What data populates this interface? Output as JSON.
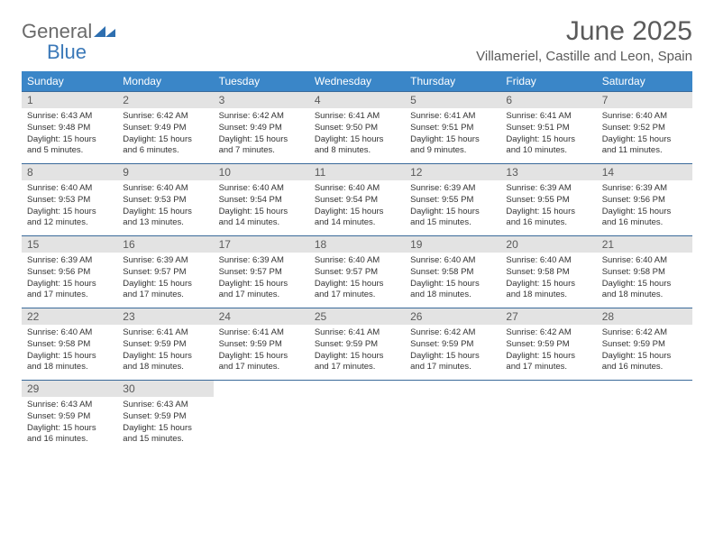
{
  "brand": {
    "general": "General",
    "blue": "Blue"
  },
  "title": "June 2025",
  "location": "Villameriel, Castille and Leon, Spain",
  "colors": {
    "header_bg": "#3a86c8",
    "header_text": "#ffffff",
    "daynum_bg": "#e3e3e3",
    "text": "#5a5a5a",
    "rule": "#3a6a9a"
  },
  "day_labels": [
    "Sunday",
    "Monday",
    "Tuesday",
    "Wednesday",
    "Thursday",
    "Friday",
    "Saturday"
  ],
  "weeks": [
    [
      {
        "n": "1",
        "sr": "6:43 AM",
        "ss": "9:48 PM",
        "dl": "15 hours and 5 minutes."
      },
      {
        "n": "2",
        "sr": "6:42 AM",
        "ss": "9:49 PM",
        "dl": "15 hours and 6 minutes."
      },
      {
        "n": "3",
        "sr": "6:42 AM",
        "ss": "9:49 PM",
        "dl": "15 hours and 7 minutes."
      },
      {
        "n": "4",
        "sr": "6:41 AM",
        "ss": "9:50 PM",
        "dl": "15 hours and 8 minutes."
      },
      {
        "n": "5",
        "sr": "6:41 AM",
        "ss": "9:51 PM",
        "dl": "15 hours and 9 minutes."
      },
      {
        "n": "6",
        "sr": "6:41 AM",
        "ss": "9:51 PM",
        "dl": "15 hours and 10 minutes."
      },
      {
        "n": "7",
        "sr": "6:40 AM",
        "ss": "9:52 PM",
        "dl": "15 hours and 11 minutes."
      }
    ],
    [
      {
        "n": "8",
        "sr": "6:40 AM",
        "ss": "9:53 PM",
        "dl": "15 hours and 12 minutes."
      },
      {
        "n": "9",
        "sr": "6:40 AM",
        "ss": "9:53 PM",
        "dl": "15 hours and 13 minutes."
      },
      {
        "n": "10",
        "sr": "6:40 AM",
        "ss": "9:54 PM",
        "dl": "15 hours and 14 minutes."
      },
      {
        "n": "11",
        "sr": "6:40 AM",
        "ss": "9:54 PM",
        "dl": "15 hours and 14 minutes."
      },
      {
        "n": "12",
        "sr": "6:39 AM",
        "ss": "9:55 PM",
        "dl": "15 hours and 15 minutes."
      },
      {
        "n": "13",
        "sr": "6:39 AM",
        "ss": "9:55 PM",
        "dl": "15 hours and 16 minutes."
      },
      {
        "n": "14",
        "sr": "6:39 AM",
        "ss": "9:56 PM",
        "dl": "15 hours and 16 minutes."
      }
    ],
    [
      {
        "n": "15",
        "sr": "6:39 AM",
        "ss": "9:56 PM",
        "dl": "15 hours and 17 minutes."
      },
      {
        "n": "16",
        "sr": "6:39 AM",
        "ss": "9:57 PM",
        "dl": "15 hours and 17 minutes."
      },
      {
        "n": "17",
        "sr": "6:39 AM",
        "ss": "9:57 PM",
        "dl": "15 hours and 17 minutes."
      },
      {
        "n": "18",
        "sr": "6:40 AM",
        "ss": "9:57 PM",
        "dl": "15 hours and 17 minutes."
      },
      {
        "n": "19",
        "sr": "6:40 AM",
        "ss": "9:58 PM",
        "dl": "15 hours and 18 minutes."
      },
      {
        "n": "20",
        "sr": "6:40 AM",
        "ss": "9:58 PM",
        "dl": "15 hours and 18 minutes."
      },
      {
        "n": "21",
        "sr": "6:40 AM",
        "ss": "9:58 PM",
        "dl": "15 hours and 18 minutes."
      }
    ],
    [
      {
        "n": "22",
        "sr": "6:40 AM",
        "ss": "9:58 PM",
        "dl": "15 hours and 18 minutes."
      },
      {
        "n": "23",
        "sr": "6:41 AM",
        "ss": "9:59 PM",
        "dl": "15 hours and 18 minutes."
      },
      {
        "n": "24",
        "sr": "6:41 AM",
        "ss": "9:59 PM",
        "dl": "15 hours and 17 minutes."
      },
      {
        "n": "25",
        "sr": "6:41 AM",
        "ss": "9:59 PM",
        "dl": "15 hours and 17 minutes."
      },
      {
        "n": "26",
        "sr": "6:42 AM",
        "ss": "9:59 PM",
        "dl": "15 hours and 17 minutes."
      },
      {
        "n": "27",
        "sr": "6:42 AM",
        "ss": "9:59 PM",
        "dl": "15 hours and 17 minutes."
      },
      {
        "n": "28",
        "sr": "6:42 AM",
        "ss": "9:59 PM",
        "dl": "15 hours and 16 minutes."
      }
    ],
    [
      {
        "n": "29",
        "sr": "6:43 AM",
        "ss": "9:59 PM",
        "dl": "15 hours and 16 minutes."
      },
      {
        "n": "30",
        "sr": "6:43 AM",
        "ss": "9:59 PM",
        "dl": "15 hours and 15 minutes."
      },
      null,
      null,
      null,
      null,
      null
    ]
  ],
  "labels": {
    "sunrise": "Sunrise: ",
    "sunset": "Sunset: ",
    "daylight": "Daylight: "
  }
}
